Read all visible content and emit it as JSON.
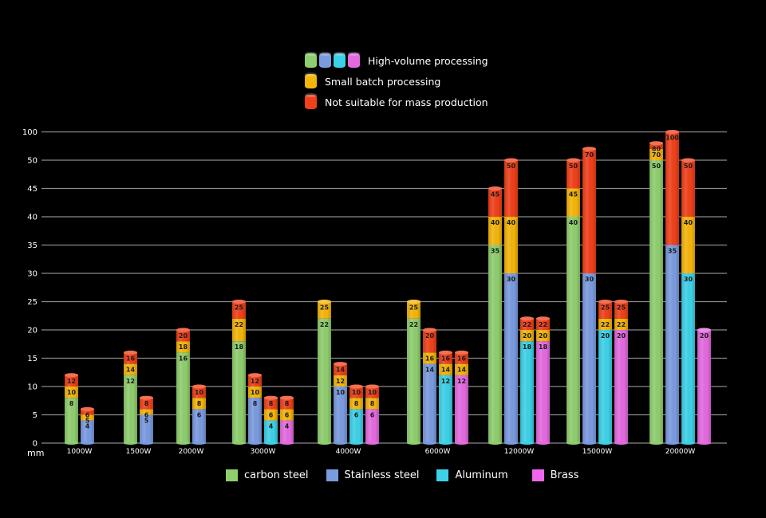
{
  "chart_data": {
    "type": "bar",
    "subtype": "stacked-cylinder",
    "title": "",
    "xlabel": "",
    "ylabel": "mm",
    "y_ticks": [
      0,
      5,
      10,
      15,
      20,
      25,
      30,
      35,
      40,
      45,
      50,
      100
    ],
    "ylim": [
      0,
      100
    ],
    "grid": true,
    "categories": [
      "1000W",
      "1500W",
      "2000W",
      "3000W",
      "4000W",
      "6000W",
      "12000W",
      "15000W",
      "20000W"
    ],
    "materials": [
      {
        "name": "carbon steel",
        "color": "#8fce6e"
      },
      {
        "name": "Stainless steel",
        "color": "#7a9be0"
      },
      {
        "name": "Aluminum",
        "color": "#3dd1e8"
      },
      {
        "name": "Brass",
        "color": "#e46ae0"
      }
    ],
    "capability_levels": [
      {
        "name": "High-volume processing",
        "color": "material"
      },
      {
        "name": "Small batch processing",
        "color": "#f5b50a"
      },
      {
        "name": "Not suitable for mass production",
        "color": "#f0401a"
      }
    ],
    "series": [
      {
        "name": "carbon steel",
        "values": [
          {
            "category": "1000W",
            "high_volume": 8,
            "small_batch": 10,
            "not_mass": 12
          },
          {
            "category": "1500W",
            "high_volume": 12,
            "small_batch": 14,
            "not_mass": 16
          },
          {
            "category": "2000W",
            "high_volume": 16,
            "small_batch": 18,
            "not_mass": 20
          },
          {
            "category": "3000W",
            "high_volume": 18,
            "small_batch": 22,
            "not_mass": 25
          },
          {
            "category": "4000W",
            "high_volume": 22,
            "small_batch": 25,
            "not_mass": null
          },
          {
            "category": "6000W",
            "high_volume": 22,
            "small_batch": 25,
            "not_mass": null
          },
          {
            "category": "12000W",
            "high_volume": 35,
            "small_batch": 40,
            "not_mass": 45
          },
          {
            "category": "15000W",
            "high_volume": 40,
            "small_batch": 45,
            "not_mass": 50
          },
          {
            "category": "20000W",
            "high_volume": 50,
            "small_batch": 70,
            "not_mass": 80
          }
        ]
      },
      {
        "name": "Stainless steel",
        "values": [
          {
            "category": "1000W",
            "high_volume": 4,
            "small_batch": 5,
            "not_mass": 6
          },
          {
            "category": "1500W",
            "high_volume": 5,
            "small_batch": 6,
            "not_mass": 8
          },
          {
            "category": "2000W",
            "high_volume": 6,
            "small_batch": 8,
            "not_mass": 10
          },
          {
            "category": "3000W",
            "high_volume": 8,
            "small_batch": 10,
            "not_mass": 12
          },
          {
            "category": "4000W",
            "high_volume": 10,
            "small_batch": 12,
            "not_mass": 14
          },
          {
            "category": "6000W",
            "high_volume": 14,
            "small_batch": 16,
            "not_mass": 20
          },
          {
            "category": "12000W",
            "high_volume": 30,
            "small_batch": 40,
            "not_mass": 50
          },
          {
            "category": "15000W",
            "high_volume": 30,
            "small_batch": null,
            "not_mass": 70
          },
          {
            "category": "20000W",
            "high_volume": 35,
            "small_batch": null,
            "not_mass": 100
          }
        ]
      },
      {
        "name": "Aluminum",
        "values": [
          {
            "category": "3000W",
            "high_volume": 4,
            "small_batch": 6,
            "not_mass": 8
          },
          {
            "category": "4000W",
            "high_volume": 6,
            "small_batch": 8,
            "not_mass": 10
          },
          {
            "category": "6000W",
            "high_volume": 12,
            "small_batch": 14,
            "not_mass": 16
          },
          {
            "category": "12000W",
            "high_volume": 18,
            "small_batch": 20,
            "not_mass": 22
          },
          {
            "category": "15000W",
            "high_volume": 20,
            "small_batch": 22,
            "not_mass": 25
          },
          {
            "category": "20000W",
            "high_volume": 30,
            "small_batch": 40,
            "not_mass": 50
          }
        ]
      },
      {
        "name": "Brass",
        "values": [
          {
            "category": "3000W",
            "high_volume": 4,
            "small_batch": 6,
            "not_mass": 8
          },
          {
            "category": "4000W",
            "high_volume": 6,
            "small_batch": 8,
            "not_mass": 10
          },
          {
            "category": "6000W",
            "high_volume": 12,
            "small_batch": 14,
            "not_mass": 16
          },
          {
            "category": "12000W",
            "high_volume": 18,
            "small_batch": 20,
            "not_mass": 22
          },
          {
            "category": "15000W",
            "high_volume": 20,
            "small_batch": 22,
            "not_mass": 25
          },
          {
            "category": "20000W",
            "high_volume": 20,
            "small_batch": null,
            "not_mass": null
          }
        ]
      }
    ],
    "legend_top": {
      "placement": "top-center",
      "items": [
        "High-volume processing",
        "Small batch processing",
        "Not suitable for mass production"
      ]
    },
    "legend_bottom": {
      "placement": "bottom-center",
      "items": [
        "carbon steel",
        "Stainless steel",
        "Aluminum",
        "Brass"
      ]
    }
  },
  "colors": {
    "background": "#000000",
    "grid": "#8a8a8a",
    "small_batch": "#f5b50a",
    "not_mass": "#f0401a",
    "label_text": "#1a1a1a"
  },
  "unit_label": "mm"
}
